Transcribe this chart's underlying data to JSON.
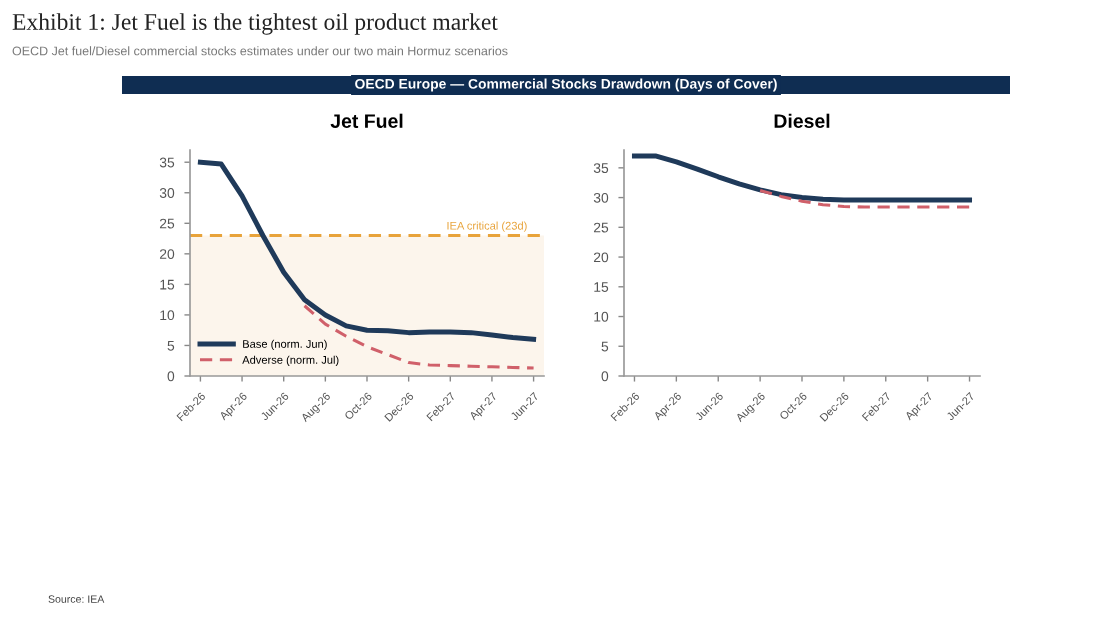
{
  "chart_data": [
    {
      "type": "line",
      "title": "Jet Fuel",
      "annotations": [
        "Exhibit 1: Jet Fuel is the tightest oil product market",
        "OECD Jet fuel/Diesel commercial stocks estimates under our two main Hormuz scenarios",
        "OECD Europe — Commercial Stocks Drawdown (Days of Cover)",
        "Source: IEA"
      ],
      "categories": [
        "Feb-26",
        null,
        "Apr-26",
        null,
        "Jun-26",
        null,
        "Aug-26",
        null,
        "Oct-26",
        null,
        "Dec-26",
        null,
        "Feb-27",
        null,
        "Apr-27",
        null,
        "Jun-27"
      ],
      "series": [
        {
          "name": "Base (norm. Jun)",
          "color": "#1f3a5a",
          "line_style": "solid",
          "values": [
            35,
            34.7,
            29.5,
            23,
            17,
            12.5,
            10,
            8.2,
            7.5,
            7.4,
            7.1,
            7.2,
            7.2,
            7.1,
            6.7,
            6.3,
            6.0
          ]
        },
        {
          "name": "Adverse (norm. Jul)",
          "color": "#d0606a",
          "line_style": "dashed",
          "values": [
            null,
            null,
            null,
            null,
            null,
            11.5,
            8.5,
            6.5,
            4.8,
            3.5,
            2.2,
            1.8,
            1.7,
            1.6,
            1.5,
            1.4,
            1.3
          ]
        }
      ],
      "ylim": [
        0,
        37
      ],
      "yticks": [
        0,
        5,
        10,
        15,
        20,
        25,
        30,
        35
      ],
      "ref_lines": [
        {
          "axis": "y",
          "value": 23,
          "label": "IEA critical (23d)",
          "color": "#e8a33a",
          "line_style": "dashed"
        }
      ],
      "bands": [
        {
          "axis": "y",
          "from": 0,
          "to": 23,
          "color": "#fcf5ec"
        }
      ],
      "legend": "bottom left",
      "grid": false
    },
    {
      "type": "line",
      "title": "Diesel",
      "categories": [
        "Feb-26",
        null,
        "Apr-26",
        null,
        "Jun-26",
        null,
        "Aug-26",
        null,
        "Oct-26",
        null,
        "Dec-26",
        null,
        "Feb-27",
        null,
        "Apr-27",
        null,
        "Jun-27"
      ],
      "series": [
        {
          "color": "#1f3a5a",
          "line_style": "solid",
          "values": [
            37,
            37,
            36,
            34.8,
            33.5,
            32.3,
            31.3,
            30.5,
            30,
            29.7,
            29.6,
            29.6,
            29.6,
            29.6,
            29.6,
            29.6,
            29.6
          ]
        },
        {
          "color": "#d0606a",
          "line_style": "dashed",
          "values": [
            null,
            null,
            null,
            null,
            null,
            null,
            31.2,
            30.2,
            29.4,
            28.8,
            28.5,
            28.4,
            28.4,
            28.4,
            28.4,
            28.4,
            28.4
          ]
        }
      ],
      "ylim": [
        0,
        38
      ],
      "yticks": [
        0,
        5,
        10,
        15,
        20,
        25,
        30,
        35
      ],
      "legend": false,
      "grid": false
    }
  ]
}
